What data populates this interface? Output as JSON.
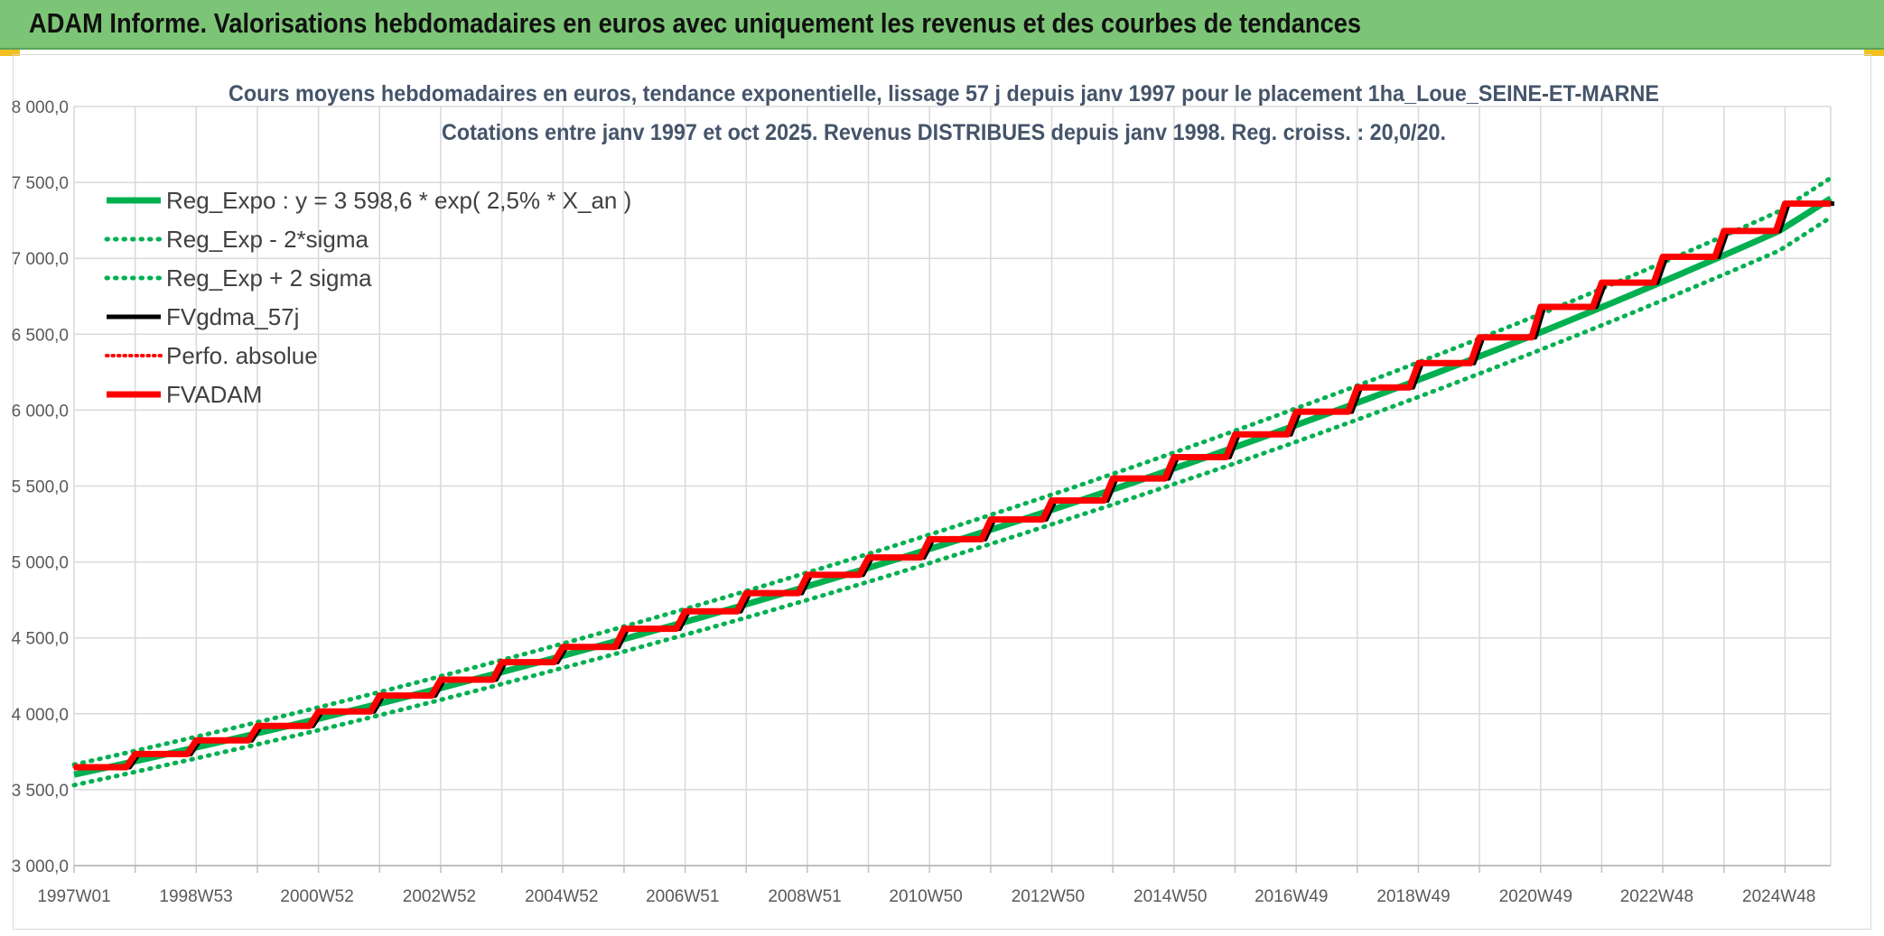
{
  "header": {
    "title": "ADAM Informe. Valorisations hebdomadaires en euros avec uniquement les revenus et des courbes de tendances"
  },
  "colors": {
    "banner": "#7cc576",
    "reg_expo": "#00b050",
    "reg_sigma": "#00b050",
    "fvgdma": "#000000",
    "perfo": "#ff0000",
    "fvadam": "#ff0000"
  },
  "chart_data": {
    "type": "line",
    "title": "Cours moyens hebdomadaires en euros, tendance exponentielle, lissage 57 j depuis janv 1997 pour le placement 1ha_Loue_SEINE-ET-MARNE",
    "subtitle": "Cotations entre janv 1997 et oct 2025. Revenus DISTRIBUES depuis janv 1998. Reg. croiss. : 20,0/20.",
    "xlabel": "",
    "ylabel": "",
    "ylim": [
      3000,
      8000
    ],
    "y_ticks": [
      "3 000,0",
      "3 500,0",
      "4 000,0",
      "4 500,0",
      "5 000,0",
      "5 500,0",
      "6 000,0",
      "6 500,0",
      "7 000,0",
      "7 500,0",
      "8 000,0"
    ],
    "x_ticks": [
      "1997W01",
      "1998W53",
      "2000W52",
      "2002W52",
      "2004W52",
      "2006W51",
      "2008W51",
      "2010W50",
      "2012W50",
      "2014W50",
      "2016W49",
      "2018W49",
      "2020W49",
      "2022W48",
      "2024W48"
    ],
    "x_range": [
      "1997W01",
      "2025W40"
    ],
    "grid": true,
    "legend_position": "top-left",
    "legend": [
      "Reg_Expo : y = 3 598,6 * exp( 2,5% *  X_an )",
      "Reg_Exp - 2*sigma",
      "Reg_Exp + 2 sigma",
      "FVgdma_57j",
      "Perfo. absolue",
      "FVADAM"
    ],
    "series": [
      {
        "name": "Reg_Expo : y = 3 598,6 * exp( 2,5% *  X_an )",
        "x": [
          "1997W01",
          "2000W52",
          "2004W52",
          "2008W51",
          "2012W50",
          "2016W49",
          "2020W49",
          "2024W48",
          "2025W40"
        ],
        "values": [
          3599,
          3965,
          4380,
          4835,
          5335,
          5890,
          6500,
          7180,
          7395
        ]
      },
      {
        "name": "Reg_Exp - 2*sigma",
        "x": [
          "1997W01",
          "2000W52",
          "2004W52",
          "2008W51",
          "2012W50",
          "2016W49",
          "2020W49",
          "2024W48",
          "2025W40"
        ],
        "values": [
          3530,
          3890,
          4300,
          4745,
          5240,
          5780,
          6385,
          7050,
          7270
        ]
      },
      {
        "name": "Reg_Exp + 2 sigma",
        "x": [
          "1997W01",
          "2000W52",
          "2004W52",
          "2008W51",
          "2012W50",
          "2016W49",
          "2020W49",
          "2024W48",
          "2025W40"
        ],
        "values": [
          3665,
          4040,
          4460,
          4925,
          5435,
          6000,
          6620,
          7310,
          7530
        ]
      },
      {
        "name": "FVgdma_57j",
        "x": [
          "1997W01",
          "1998W01",
          "1999W01",
          "2000W01",
          "2001W01",
          "2002W01",
          "2003W01",
          "2004W01",
          "2005W01",
          "2006W01",
          "2007W01",
          "2008W01",
          "2009W01",
          "2010W01",
          "2011W01",
          "2012W01",
          "2013W01",
          "2014W01",
          "2015W01",
          "2016W01",
          "2017W01",
          "2018W01",
          "2019W01",
          "2020W01",
          "2021W01",
          "2022W01",
          "2023W01",
          "2024W01",
          "2025W01",
          "2025W40"
        ],
        "values": [
          3648,
          3735,
          3825,
          3920,
          4015,
          4120,
          4225,
          4340,
          4440,
          4560,
          4675,
          4795,
          4915,
          5030,
          5150,
          5280,
          5405,
          5550,
          5690,
          5840,
          5990,
          6150,
          6310,
          6480,
          6680,
          6840,
          7010,
          7180,
          7360,
          7360
        ]
      },
      {
        "name": "Perfo. absolue",
        "x": [
          "1997W01",
          "1998W01",
          "1999W01",
          "2000W01",
          "2001W01",
          "2002W01",
          "2003W01",
          "2004W01",
          "2005W01",
          "2006W01",
          "2007W01",
          "2008W01",
          "2009W01",
          "2010W01",
          "2011W01",
          "2012W01",
          "2013W01",
          "2014W01",
          "2015W01",
          "2016W01",
          "2017W01",
          "2018W01",
          "2019W01",
          "2020W01",
          "2021W01",
          "2022W01",
          "2023W01",
          "2024W01",
          "2025W01",
          "2025W40"
        ],
        "values": [
          3648,
          3735,
          3825,
          3920,
          4015,
          4120,
          4225,
          4340,
          4440,
          4560,
          4675,
          4795,
          4915,
          5030,
          5150,
          5280,
          5405,
          5550,
          5690,
          5840,
          5990,
          6150,
          6310,
          6480,
          6680,
          6840,
          7010,
          7180,
          7360,
          7360
        ]
      },
      {
        "name": "FVADAM",
        "x": [
          "1997W01",
          "1998W01",
          "1999W01",
          "2000W01",
          "2001W01",
          "2002W01",
          "2003W01",
          "2004W01",
          "2005W01",
          "2006W01",
          "2007W01",
          "2008W01",
          "2009W01",
          "2010W01",
          "2011W01",
          "2012W01",
          "2013W01",
          "2014W01",
          "2015W01",
          "2016W01",
          "2017W01",
          "2018W01",
          "2019W01",
          "2020W01",
          "2021W01",
          "2022W01",
          "2023W01",
          "2024W01",
          "2025W01",
          "2025W40"
        ],
        "values": [
          3648,
          3735,
          3825,
          3920,
          4015,
          4120,
          4225,
          4340,
          4440,
          4560,
          4675,
          4795,
          4915,
          5030,
          5150,
          5280,
          5405,
          5550,
          5690,
          5840,
          5990,
          6150,
          6310,
          6480,
          6680,
          6840,
          7010,
          7180,
          7360,
          7360
        ]
      }
    ]
  }
}
